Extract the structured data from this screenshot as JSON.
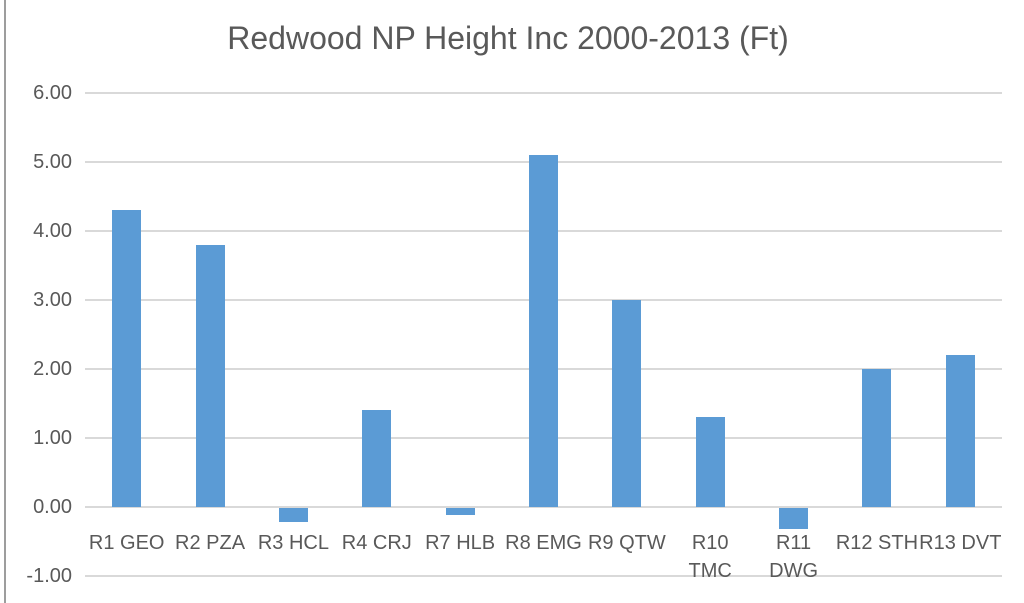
{
  "title": "Redwood NP Height Inc 2000-2013 (Ft)",
  "colors": {
    "bar": "#5B9BD5",
    "gridline": "#D9D9D9",
    "text": "#595959",
    "left_border": "#9D9D9D"
  },
  "chart_data": {
    "type": "bar",
    "title": "Redwood NP Height Inc 2000-2013 (Ft)",
    "categories": [
      "R1 GEO",
      "R2 PZA",
      "R3 HCL",
      "R4 CRJ",
      "R7 HLB",
      "R8 EMG",
      "R9 QTW",
      "R10 TMC",
      "R11 DWG",
      "R12 STH",
      "R13 DVT"
    ],
    "category_lines": [
      [
        "R1 GEO"
      ],
      [
        "R2 PZA"
      ],
      [
        "R3 HCL"
      ],
      [
        "R4 CRJ"
      ],
      [
        "R7 HLB"
      ],
      [
        "R8 EMG"
      ],
      [
        "R9 QTW"
      ],
      [
        "R10",
        "TMC"
      ],
      [
        "R11",
        "DWG"
      ],
      [
        "R12 STH"
      ],
      [
        "R13 DVT"
      ]
    ],
    "values": [
      4.3,
      3.8,
      -0.2,
      1.4,
      -0.1,
      5.1,
      3.0,
      1.3,
      -0.3,
      2.0,
      2.2
    ],
    "xlabel": "",
    "ylabel": "",
    "ylim": [
      -1,
      6
    ],
    "ytick_step": 1,
    "ytick_labels": [
      "6.00",
      "5.00",
      "4.00",
      "3.00",
      "2.00",
      "1.00",
      "0.00",
      "-1.00"
    ],
    "grid": true,
    "legend": false
  }
}
